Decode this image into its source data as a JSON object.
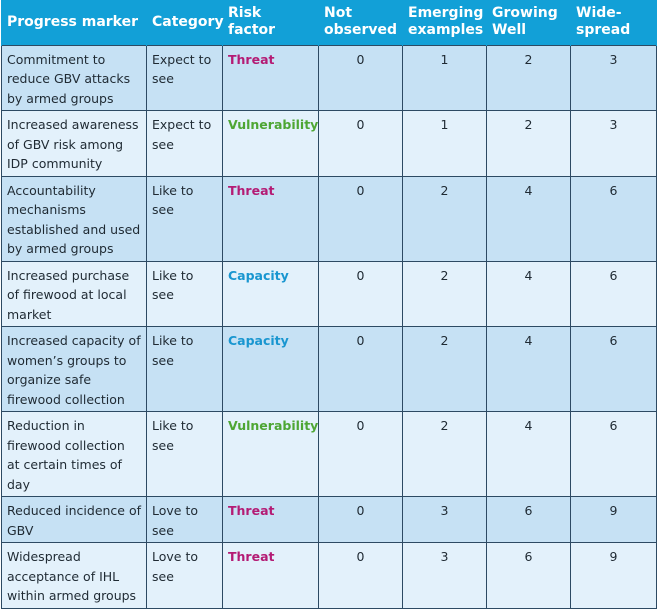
{
  "headers": {
    "progress_marker": "Progress marker",
    "category": "Category",
    "risk_factor": "Risk factor",
    "not_observed": "Not observed",
    "emerging_examples": "Emerging examples",
    "growing_well": "Growing Well",
    "widespread": "Wide-spread"
  },
  "rows": [
    {
      "marker": "Commitment to reduce GBV attacks by armed groups",
      "category": "Expect to see",
      "risk": "Threat",
      "not_observed": "0",
      "emerging": "1",
      "growing": "2",
      "widespread": "3"
    },
    {
      "marker": "Increased awareness of GBV risk among IDP community",
      "category": "Expect to see",
      "risk": "Vulnerability",
      "not_observed": "0",
      "emerging": "1",
      "growing": "2",
      "widespread": "3"
    },
    {
      "marker": "Accountability mechanisms established and used by armed groups",
      "category": "Like to see",
      "risk": "Threat",
      "not_observed": "0",
      "emerging": "2",
      "growing": "4",
      "widespread": "6"
    },
    {
      "marker": "Increased purchase of firewood at local market",
      "category": "Like to see",
      "risk": "Capacity",
      "not_observed": "0",
      "emerging": "2",
      "growing": "4",
      "widespread": "6"
    },
    {
      "marker": "Increased capacity of women’s groups to organize safe firewood collection",
      "category": "Like to see",
      "risk": "Capacity",
      "not_observed": "0",
      "emerging": "2",
      "growing": "4",
      "widespread": "6"
    },
    {
      "marker": "Reduction in firewood collection at certain times of day",
      "category": "Like to see",
      "risk": "Vulnerability",
      "not_observed": "0",
      "emerging": "2",
      "growing": "4",
      "widespread": "6"
    },
    {
      "marker": "Reduced incidence of GBV",
      "category": "Love to see",
      "risk": "Threat",
      "not_observed": "0",
      "emerging": "3",
      "growing": "6",
      "widespread": "9"
    },
    {
      "marker": "Widespread acceptance of IHL within armed groups",
      "category": "Love to see",
      "risk": "Threat",
      "not_observed": "0",
      "emerging": "3",
      "growing": "6",
      "widespread": "9"
    }
  ],
  "risk_colors": {
    "Threat": "#b41b74",
    "Vulnerability": "#4ea634",
    "Capacity": "#1996d0"
  },
  "header_color": "#12a0d7"
}
